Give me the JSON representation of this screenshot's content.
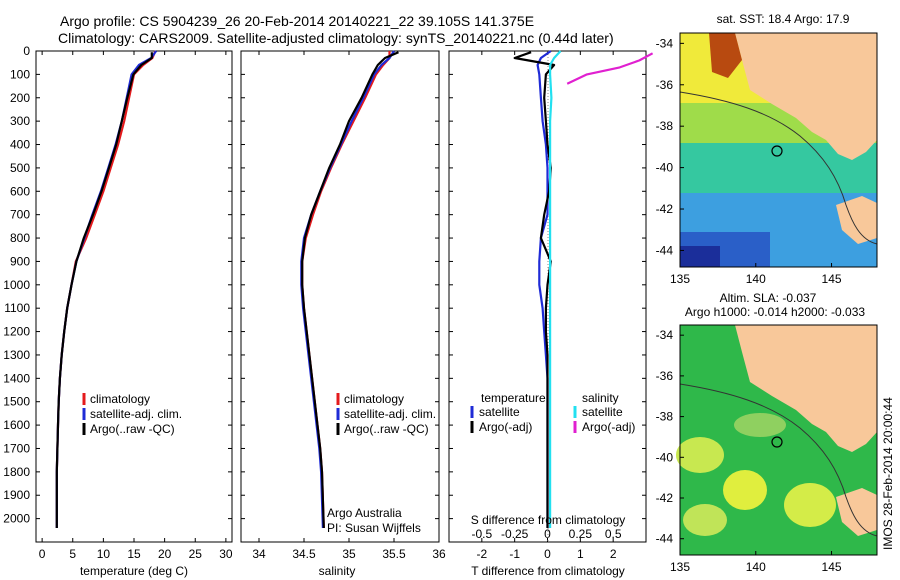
{
  "title": {
    "line1": "Argo profile: CS 5904239_26 20-Feb-2014 20140221_22 39.105S 141.375E",
    "line2": "Climatology: CARS2009. Satellite-adjusted climatology: synTS_20140221.nc (0.44d later)"
  },
  "credit": {
    "line1": "Argo Australia",
    "line2": "PI: Susan Wijffels"
  },
  "watermark": "IMOS 28-Feb-2014 20:00:44",
  "legends": {
    "temperature": [
      "climatology",
      "satellite-adj. clim.",
      "Argo(..raw -QC)"
    ],
    "salinity": [
      "climatology",
      "satellite-adj. clim.",
      "Argo(..raw -QC)"
    ],
    "difference": {
      "temp_header": "temperature",
      "sal_header": "salinity",
      "temp_items": [
        "satellite",
        "Argo(-adj)"
      ],
      "sal_items": [
        "satellite",
        "Argo(-adj)"
      ]
    }
  },
  "maps": {
    "sst_title": "sat. SST: 18.4  Argo: 17.9",
    "sla_title_line1": "Altim. SLA: -0.037",
    "sla_title_line2": "Argo h1000: -0.014 h2000: -0.033",
    "lat_ticks": [
      "-34",
      "-36",
      "-38",
      "-40",
      "-42",
      "-44"
    ],
    "lon_ticks": [
      "135",
      "140",
      "145"
    ],
    "float_location": {
      "lon": 141.375,
      "lat": -39.105
    }
  },
  "colors": {
    "climatology": "#e41a1c",
    "satellite": "#1f2bd6",
    "argo": "#000000",
    "sal_satellite": "#22e0f0",
    "sal_argo": "#e020d0",
    "land": "#f8c89a"
  },
  "chart_data": [
    {
      "type": "line",
      "ylabel": "",
      "xlabel": "temperature (deg C)",
      "xlim": [
        -1,
        31
      ],
      "ylim": [
        2100,
        0
      ],
      "xticks": [
        "0",
        "5",
        "10",
        "15",
        "20",
        "25",
        "30"
      ],
      "yticks": [
        "0",
        "100",
        "200",
        "300",
        "400",
        "500",
        "600",
        "700",
        "800",
        "900",
        "1000",
        "1100",
        "1200",
        "1300",
        "1400",
        "1500",
        "1600",
        "1700",
        "1800",
        "1900",
        "2000"
      ],
      "series": [
        {
          "name": "climatology",
          "x": [
            18.5,
            18.0,
            16.5,
            15.0,
            14.2,
            13.4,
            12.4,
            11.2,
            10.0,
            8.6,
            7.2,
            5.5,
            4.8,
            4.1,
            3.6,
            3.2,
            2.9,
            2.7,
            2.6,
            2.5,
            2.4,
            2.4
          ],
          "y": [
            0,
            30,
            60,
            100,
            200,
            300,
            400,
            500,
            600,
            700,
            800,
            900,
            1000,
            1100,
            1200,
            1300,
            1400,
            1500,
            1600,
            1700,
            1800,
            2040
          ]
        },
        {
          "name": "satellite-adj. clim.",
          "x": [
            18.6,
            17.8,
            15.8,
            14.6,
            13.8,
            13.0,
            12.0,
            10.8,
            9.6,
            8.2,
            6.9,
            5.6,
            4.8,
            4.1,
            3.6,
            3.2,
            2.9,
            2.7,
            2.6,
            2.5,
            2.4,
            2.4
          ],
          "y": [
            0,
            30,
            60,
            100,
            200,
            300,
            400,
            500,
            600,
            700,
            800,
            900,
            1000,
            1100,
            1200,
            1300,
            1400,
            1500,
            1600,
            1700,
            1800,
            2040
          ]
        },
        {
          "name": "Argo(..raw -QC)",
          "x": [
            17.9,
            17.9,
            16.2,
            14.9,
            13.9,
            13.0,
            12.1,
            10.9,
            9.7,
            8.3,
            6.8,
            5.6,
            4.8,
            4.1,
            3.6,
            3.2,
            2.9,
            2.7,
            2.6,
            2.5,
            2.4,
            2.4
          ],
          "y": [
            5,
            30,
            60,
            100,
            200,
            300,
            400,
            500,
            600,
            700,
            800,
            900,
            1000,
            1100,
            1200,
            1300,
            1400,
            1500,
            1600,
            1700,
            1800,
            2040
          ]
        }
      ]
    },
    {
      "type": "line",
      "ylabel": "",
      "xlabel": "salinity",
      "xlim": [
        33.8,
        36.0
      ],
      "ylim": [
        2100,
        0
      ],
      "xticks": [
        "34",
        "34.5",
        "35",
        "35.5",
        "36"
      ],
      "series": [
        {
          "name": "climatology",
          "x": [
            35.45,
            35.45,
            35.38,
            35.3,
            35.18,
            35.05,
            34.92,
            34.8,
            34.69,
            34.6,
            34.52,
            34.48,
            34.48,
            34.5,
            34.53,
            34.56,
            34.59,
            34.62,
            34.65,
            34.68,
            34.7,
            34.72
          ],
          "y": [
            0,
            30,
            60,
            100,
            200,
            300,
            400,
            500,
            600,
            700,
            800,
            900,
            1000,
            1100,
            1200,
            1300,
            1400,
            1500,
            1600,
            1700,
            1800,
            2040
          ]
        },
        {
          "name": "satellite-adj. clim.",
          "x": [
            35.5,
            35.45,
            35.36,
            35.28,
            35.16,
            35.03,
            34.91,
            34.79,
            34.68,
            34.58,
            34.5,
            34.47,
            34.47,
            34.49,
            34.52,
            34.55,
            34.58,
            34.61,
            34.64,
            34.67,
            34.69,
            34.71
          ],
          "y": [
            0,
            30,
            60,
            100,
            200,
            300,
            400,
            500,
            600,
            700,
            800,
            900,
            1000,
            1100,
            1200,
            1300,
            1400,
            1500,
            1600,
            1700,
            1800,
            2040
          ]
        },
        {
          "name": "Argo(..raw -QC)",
          "x": [
            35.55,
            35.4,
            35.32,
            35.26,
            35.14,
            35.0,
            34.9,
            34.78,
            34.68,
            34.58,
            34.51,
            34.48,
            34.48,
            34.5,
            34.53,
            34.56,
            34.59,
            34.62,
            34.65,
            34.68,
            34.7,
            34.72
          ],
          "y": [
            5,
            30,
            60,
            100,
            200,
            300,
            400,
            500,
            600,
            700,
            800,
            900,
            1000,
            1100,
            1200,
            1300,
            1400,
            1500,
            1600,
            1700,
            1800,
            2040
          ]
        }
      ]
    },
    {
      "type": "line",
      "xlabel": "T difference from climatology",
      "top_xlabel": "S difference from climatology",
      "xlim": [
        -3,
        3
      ],
      "ylim": [
        2100,
        0
      ],
      "xticks": [
        "-2",
        "-1",
        "0",
        "1",
        "2"
      ],
      "top_xticks": [
        "-0.5",
        "-0.25",
        "0",
        "0.25",
        "0.5"
      ],
      "series": [
        {
          "name": "temperature satellite",
          "x": [
            0.1,
            -0.2,
            -0.3,
            -0.25,
            -0.2,
            -0.15,
            -0.05,
            0,
            0,
            0,
            -0.2,
            -0.25,
            -0.25,
            -0.15,
            -0.1,
            -0.05,
            0,
            0,
            0,
            0,
            0,
            0
          ],
          "y": [
            0,
            30,
            60,
            100,
            200,
            300,
            400,
            500,
            600,
            700,
            800,
            900,
            1000,
            1100,
            1200,
            1300,
            1400,
            1500,
            1600,
            1700,
            1800,
            2040
          ]
        },
        {
          "name": "temperature Argo(-adj)",
          "x": [
            -0.5,
            -1.0,
            0.2,
            -0.05,
            -0.1,
            -0.05,
            0.0,
            0.1,
            0.05,
            -0.1,
            -0.2,
            0.1,
            0.0,
            -0.05,
            -0.05,
            0,
            0,
            0,
            0,
            0,
            0,
            0
          ],
          "y": [
            5,
            30,
            60,
            100,
            200,
            300,
            400,
            500,
            600,
            700,
            800,
            900,
            1000,
            1100,
            1200,
            1300,
            1400,
            1500,
            1600,
            1700,
            1800,
            2040
          ]
        },
        {
          "name": "salinity satellite",
          "x": [
            0.1,
            0.05,
            0.02,
            0.02,
            0.03,
            0.02,
            0.02,
            0.02,
            0.02,
            0.02,
            0.02,
            0.02,
            0.02,
            0.02,
            0.02,
            0.02,
            0.02,
            0.02,
            0.02,
            0.02,
            0.02,
            0.02
          ],
          "y": [
            0,
            30,
            60,
            100,
            200,
            300,
            400,
            500,
            600,
            700,
            800,
            900,
            1000,
            1100,
            1200,
            1300,
            1400,
            1500,
            1600,
            1700,
            1800,
            2040
          ]
        },
        {
          "name": "salinity Argo(-adj)",
          "x": [
            0.8,
            0.7,
            0.55,
            0.3,
            0.15
          ],
          "y": [
            10,
            40,
            70,
            100,
            140
          ]
        }
      ]
    }
  ]
}
